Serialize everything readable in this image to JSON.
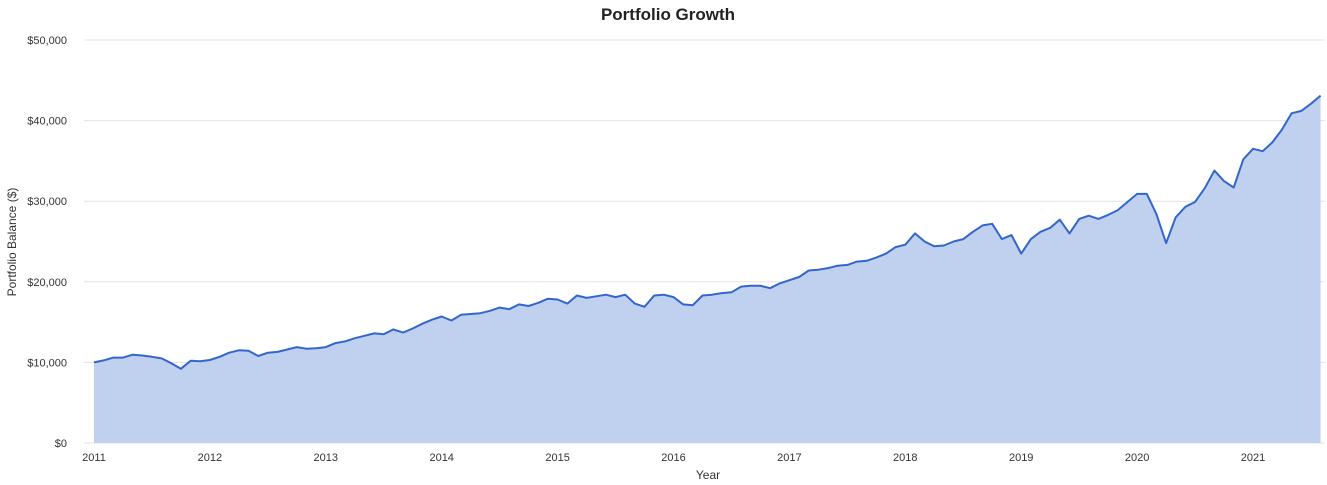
{
  "chart_data": {
    "type": "area",
    "title": "Portfolio Growth",
    "xlabel": "Year",
    "ylabel": "Portfolio Balance ($)",
    "ylim": [
      0,
      50000
    ],
    "y_ticks": [
      0,
      10000,
      20000,
      30000,
      40000,
      50000
    ],
    "y_tick_labels": [
      "$0",
      "$10,000",
      "$20,000",
      "$30,000",
      "$40,000",
      "$50,000"
    ],
    "x_tick_labels": [
      "2011",
      "2012",
      "2013",
      "2014",
      "2015",
      "2016",
      "2017",
      "2018",
      "2019",
      "2020",
      "2021"
    ],
    "grid": true,
    "legend": "none",
    "colors": {
      "line": "#3366cc",
      "fill": "#c0d1ef",
      "grid": "#e3e3e3"
    },
    "series": [
      {
        "x_start": "2011-01",
        "x_step": "month",
        "values": [
          10000,
          10250,
          10600,
          10600,
          10950,
          10850,
          10700,
          10500,
          9900,
          9200,
          10200,
          10150,
          10300,
          10700,
          11200,
          11500,
          11450,
          10800,
          11200,
          11300,
          11600,
          11900,
          11700,
          11750,
          11900,
          12400,
          12600,
          13000,
          13300,
          13600,
          13500,
          14100,
          13700,
          14200,
          14800,
          15300,
          15700,
          15200,
          15900,
          16000,
          16100,
          16400,
          16800,
          16600,
          17200,
          17000,
          17400,
          17900,
          17800,
          17300,
          18300,
          18000,
          18200,
          18400,
          18100,
          18400,
          17300,
          16900,
          18300,
          18400,
          18100,
          17200,
          17100,
          18300,
          18400,
          18600,
          18700,
          19400,
          19500,
          19500,
          19200,
          19800,
          20200,
          20600,
          21400,
          21500,
          21700,
          22000,
          22100,
          22500,
          22600,
          23000,
          23500,
          24300,
          24600,
          26000,
          25000,
          24400,
          24500,
          25000,
          25300,
          26200,
          27000,
          27200,
          25300,
          25800,
          23500,
          25300,
          26200,
          26700,
          27700,
          26000,
          27800,
          28200,
          27800,
          28300,
          28900,
          29900,
          30900,
          30900,
          28400,
          24800,
          28000,
          29300,
          29900,
          31600,
          33800,
          32500,
          31700,
          35200,
          36500,
          36200,
          37300,
          38900,
          40900,
          41200,
          42100,
          43100
        ]
      }
    ]
  }
}
